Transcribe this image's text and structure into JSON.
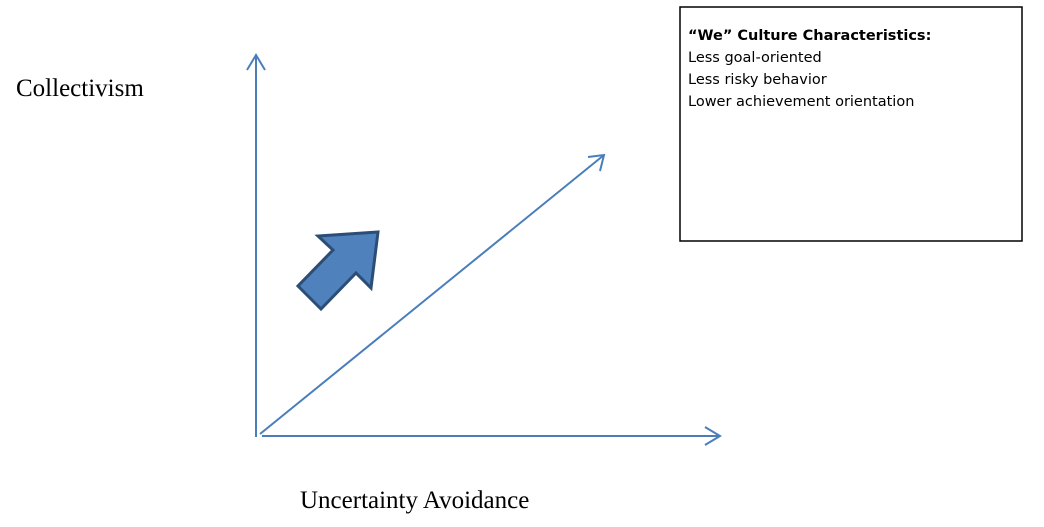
{
  "axes": {
    "y_label": "Collectivism",
    "x_label": "Uncertainty Avoidance"
  },
  "box": {
    "title": "“We” Culture Characteristics:",
    "items": [
      "Less goal-oriented",
      "Less risky behavior",
      "Lower achievement orientation"
    ]
  }
}
